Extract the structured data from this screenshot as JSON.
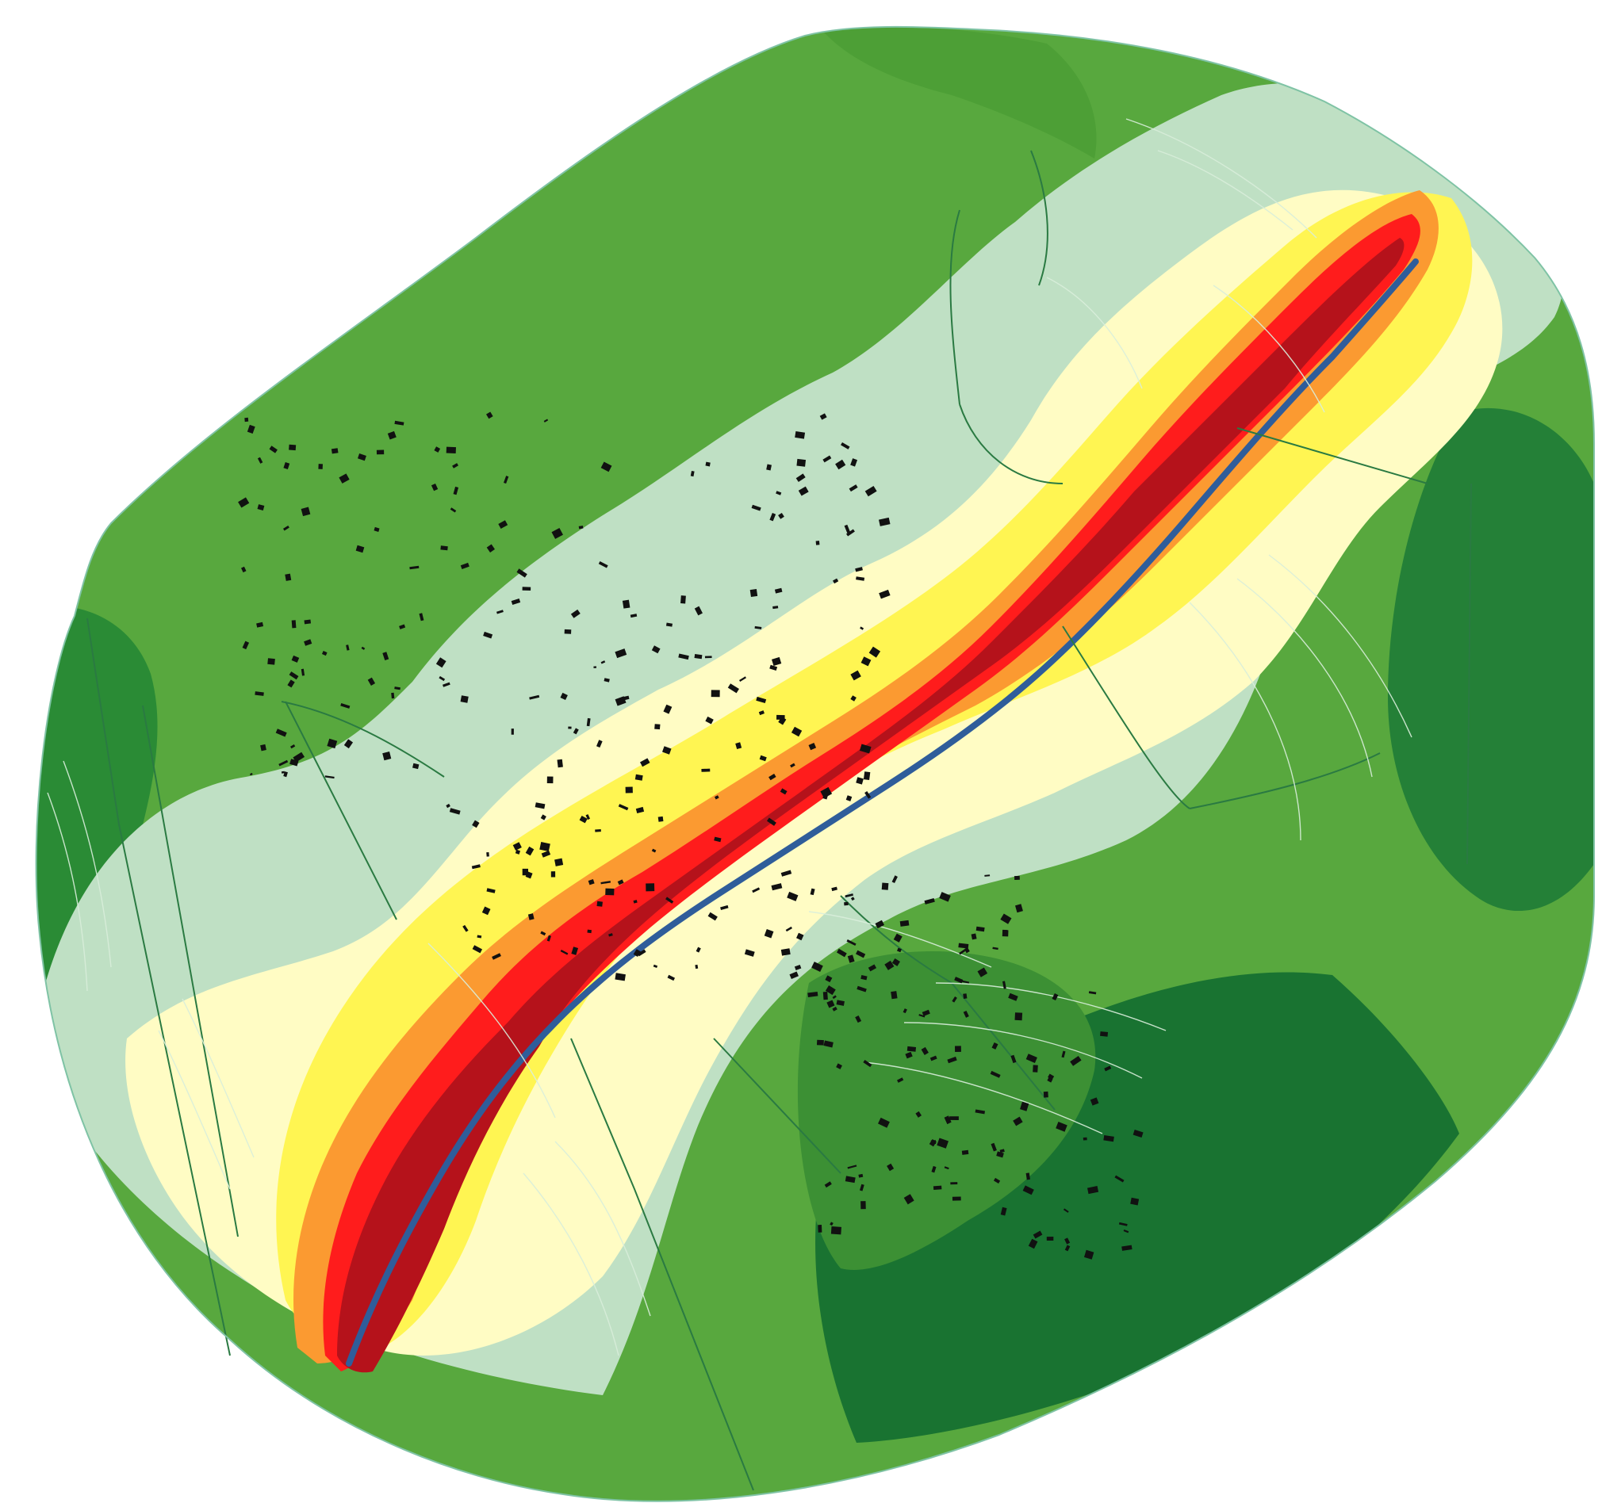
{
  "map": {
    "type": "noise-contour-map",
    "labels": [],
    "noise_bands": [
      {
        "band": "very-low",
        "color": "#bfe0c4"
      },
      {
        "band": "low",
        "color": "#fffcc4"
      },
      {
        "band": "moderate",
        "color": "#fff552"
      },
      {
        "band": "elevated",
        "color": "#fb9a31"
      },
      {
        "band": "high",
        "color": "#ff1c1c"
      },
      {
        "band": "very-high",
        "color": "#b5121b"
      },
      {
        "band": "source",
        "color": "#2f5d9a"
      }
    ],
    "terrain_colors": {
      "forest_light": "#58a83e",
      "forest_mid": "#3c9034",
      "forest_dark": "#197331",
      "contour_line": "#d9eedb",
      "boundary_line": "#2a7a42",
      "building": "#111111"
    },
    "features": [
      {
        "name": "road-corridor",
        "icon": "road-line"
      },
      {
        "name": "buildings",
        "icon": "building-block"
      },
      {
        "name": "parcel-boundaries",
        "icon": "boundary-line"
      },
      {
        "name": "terrain-contours",
        "icon": "contour-line"
      }
    ]
  }
}
